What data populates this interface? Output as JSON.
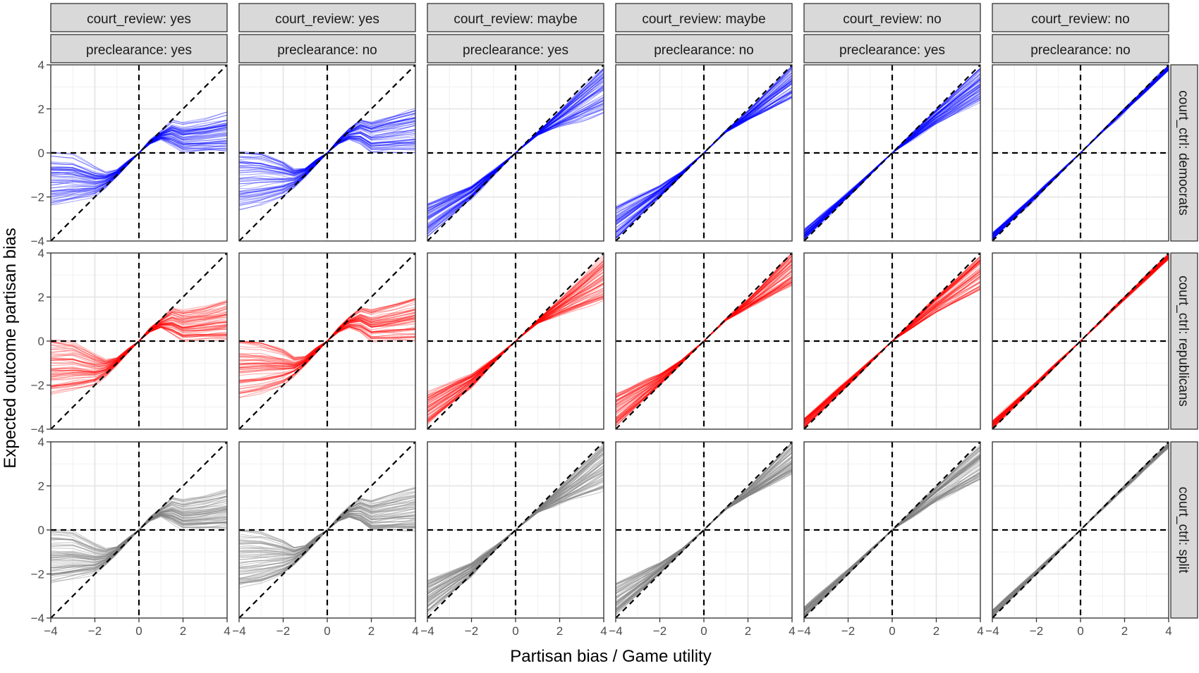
{
  "chart_data": {
    "type": "line",
    "title": "",
    "xlabel": "Partisan bias / Game utility",
    "ylabel": "Expected outcome partisan bias",
    "xlim": [
      -4,
      4
    ],
    "ylim": [
      -4,
      4
    ],
    "x_ticks": [
      "−4",
      "−2",
      "0",
      "2",
      "4"
    ],
    "y_ticks": [
      "−4",
      "−2",
      "0",
      "2",
      "4"
    ],
    "grid": true,
    "reference_lines": [
      "x = 0",
      "y = 0",
      "y = x"
    ],
    "series_per_panel": 60,
    "facet_columns": [
      {
        "court_review": "court_review: yes",
        "preclearance": "preclearance: yes",
        "key": "yes_yes"
      },
      {
        "court_review": "court_review: yes",
        "preclearance": "preclearance: no",
        "key": "yes_no"
      },
      {
        "court_review": "court_review: maybe",
        "preclearance": "preclearance: yes",
        "key": "maybe_yes"
      },
      {
        "court_review": "court_review: maybe",
        "preclearance": "preclearance: no",
        "key": "maybe_no"
      },
      {
        "court_review": "court_review: no",
        "preclearance": "preclearance: yes",
        "key": "no_yes"
      },
      {
        "court_review": "court_review: no",
        "preclearance": "preclearance: no",
        "key": "no_no"
      }
    ],
    "facet_rows": [
      {
        "label": "court_ctrl: democrats",
        "color": "#0000ff",
        "opacity": 0.32,
        "key": "democrats"
      },
      {
        "label": "court_ctrl: republicans",
        "color": "#ff0000",
        "opacity": 0.32,
        "key": "republicans"
      },
      {
        "label": "court_ctrl: split",
        "color": "#7f7f7f",
        "opacity": 0.4,
        "key": "split"
      }
    ],
    "panel_envelopes": {
      "yes_yes": {
        "x": [
          -4,
          -3,
          -2,
          -1.5,
          -1,
          -0.5,
          0,
          0.5,
          1,
          1.5,
          2,
          3,
          4
        ],
        "y_low": [
          -2.5,
          -2.3,
          -2.0,
          -1.6,
          -1.1,
          -0.55,
          0,
          0.4,
          0.6,
          0.3,
          0.0,
          0.0,
          0.0
        ],
        "y_high": [
          0.1,
          0.0,
          -0.6,
          -0.85,
          -0.75,
          -0.35,
          0,
          0.6,
          1.0,
          1.5,
          1.4,
          1.6,
          1.9
        ]
      },
      "yes_no": {
        "x": [
          -4,
          -3,
          -2,
          -1.5,
          -1,
          -0.5,
          0,
          0.5,
          1,
          1.5,
          2,
          3,
          4
        ],
        "y_low": [
          -2.6,
          -2.4,
          -2.0,
          -1.6,
          -1.1,
          -0.55,
          0,
          0.4,
          0.6,
          0.4,
          0.0,
          0.0,
          0.0
        ],
        "y_high": [
          0.1,
          0.0,
          -0.4,
          -0.75,
          -0.7,
          -0.3,
          0,
          0.6,
          1.1,
          1.5,
          1.4,
          1.7,
          2.0
        ]
      },
      "maybe_yes": {
        "x": [
          -4,
          -2,
          -1,
          0,
          1,
          2,
          4
        ],
        "y_low": [
          -3.8,
          -2.1,
          -1.0,
          0,
          0.8,
          1.2,
          1.8
        ],
        "y_high": [
          -2.3,
          -1.5,
          -0.8,
          0,
          0.95,
          1.9,
          3.9
        ]
      },
      "maybe_no": {
        "x": [
          -4,
          -2,
          -1,
          0,
          1,
          2,
          4
        ],
        "y_low": [
          -3.9,
          -2.0,
          -1.0,
          0,
          0.95,
          1.5,
          2.5
        ],
        "y_high": [
          -2.4,
          -1.5,
          -0.85,
          0,
          1.0,
          1.9,
          4.0
        ]
      },
      "no_yes": {
        "x": [
          -4,
          -2,
          0,
          2,
          4
        ],
        "y_low": [
          -3.95,
          -2.0,
          0,
          1.3,
          2.3
        ],
        "y_high": [
          -3.5,
          -1.8,
          0,
          2.0,
          3.9
        ]
      },
      "no_no": {
        "x": [
          -4,
          -2,
          0,
          2,
          4
        ],
        "y_low": [
          -3.95,
          -2.0,
          0,
          1.9,
          3.75
        ],
        "y_high": [
          -3.65,
          -1.85,
          0,
          2.0,
          3.95
        ]
      }
    }
  }
}
